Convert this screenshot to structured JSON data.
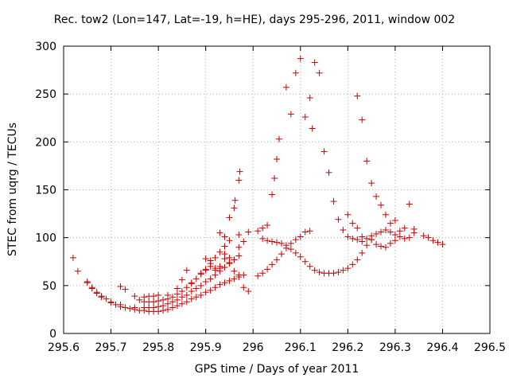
{
  "chart_data": {
    "type": "scatter",
    "title": "Rec. tow2 (Lon=147, Lat=-19, h=HE), days 295-296, 2011, window 002",
    "xlabel": "GPS time / Days of year 2011",
    "ylabel": "STEC from uqrg / TECUs",
    "xlim": [
      295.6,
      296.5
    ],
    "ylim": [
      0,
      300
    ],
    "x_ticks": [
      "295.6",
      "295.7",
      "295.8",
      "295.9",
      "296",
      "296.1",
      "296.2",
      "296.3",
      "296.4",
      "296.5"
    ],
    "y_ticks": [
      "0",
      "50",
      "100",
      "150",
      "200",
      "250",
      "300"
    ],
    "grid": true,
    "legend": "none",
    "marker": "plus",
    "color": "#cc0000",
    "series": [
      {
        "points": [
          [
            295.62,
            79
          ],
          [
            295.63,
            65
          ],
          [
            295.65,
            54
          ],
          [
            295.66,
            48
          ],
          [
            295.67,
            43
          ],
          [
            295.68,
            39
          ],
          [
            295.69,
            36
          ],
          [
            295.7,
            32
          ],
          [
            295.71,
            30
          ],
          [
            295.72,
            28
          ],
          [
            295.73,
            27
          ],
          [
            295.74,
            26
          ],
          [
            295.75,
            25
          ],
          [
            295.76,
            24
          ],
          [
            295.77,
            24
          ],
          [
            295.78,
            23
          ],
          [
            295.79,
            23
          ],
          [
            295.8,
            23
          ],
          [
            295.81,
            24
          ],
          [
            295.82,
            25
          ],
          [
            295.83,
            27
          ],
          [
            295.84,
            29
          ],
          [
            295.85,
            31
          ],
          [
            295.86,
            33
          ],
          [
            295.87,
            36
          ],
          [
            295.88,
            38
          ],
          [
            295.89,
            40
          ],
          [
            295.9,
            43
          ],
          [
            295.91,
            45
          ],
          [
            295.92,
            48
          ],
          [
            295.93,
            51
          ],
          [
            295.94,
            53
          ],
          [
            295.95,
            55
          ],
          [
            295.96,
            57
          ],
          [
            295.97,
            59
          ],
          [
            295.98,
            61
          ]
        ]
      },
      {
        "points": [
          [
            295.65,
            53
          ],
          [
            295.66,
            47
          ],
          [
            295.67,
            42
          ],
          [
            295.68,
            38
          ],
          [
            295.7,
            33
          ],
          [
            295.72,
            30
          ],
          [
            295.75,
            27
          ],
          [
            295.77,
            27
          ],
          [
            295.78,
            27
          ],
          [
            295.79,
            27
          ],
          [
            295.8,
            28
          ],
          [
            295.81,
            29
          ],
          [
            295.82,
            31
          ],
          [
            295.83,
            33
          ],
          [
            295.84,
            35
          ],
          [
            295.85,
            38
          ],
          [
            295.86,
            40
          ],
          [
            295.87,
            44
          ],
          [
            295.88,
            47
          ],
          [
            295.89,
            50
          ],
          [
            295.9,
            54
          ],
          [
            295.91,
            57
          ],
          [
            295.92,
            61
          ],
          [
            295.93,
            65
          ],
          [
            295.94,
            69
          ],
          [
            295.95,
            73
          ],
          [
            295.96,
            77
          ],
          [
            295.97,
            81
          ]
        ]
      },
      {
        "points": [
          [
            295.72,
            49
          ],
          [
            295.73,
            46
          ],
          [
            295.75,
            39
          ],
          [
            295.76,
            35
          ],
          [
            295.77,
            33
          ],
          [
            295.78,
            33
          ],
          [
            295.79,
            33
          ],
          [
            295.8,
            34
          ],
          [
            295.81,
            35
          ],
          [
            295.82,
            36
          ],
          [
            295.83,
            38
          ],
          [
            295.84,
            41
          ],
          [
            295.85,
            44
          ],
          [
            295.86,
            48
          ],
          [
            295.87,
            52
          ],
          [
            295.88,
            57
          ],
          [
            295.89,
            62
          ],
          [
            295.9,
            67
          ],
          [
            295.91,
            73
          ],
          [
            295.92,
            79
          ],
          [
            295.93,
            85
          ],
          [
            295.94,
            91
          ],
          [
            295.95,
            97
          ],
          [
            295.97,
            103
          ],
          [
            295.99,
            106
          ]
        ]
      },
      {
        "points": [
          [
            295.77,
            38
          ],
          [
            295.78,
            39
          ],
          [
            295.79,
            39
          ],
          [
            295.8,
            40
          ],
          [
            295.82,
            40
          ],
          [
            295.84,
            47
          ],
          [
            295.85,
            56
          ],
          [
            295.86,
            66
          ],
          [
            295.87,
            53
          ],
          [
            295.89,
            63
          ],
          [
            295.9,
            66
          ],
          [
            295.91,
            70
          ],
          [
            295.92,
            68
          ],
          [
            295.93,
            70
          ],
          [
            295.94,
            78
          ],
          [
            295.95,
            79
          ],
          [
            295.96,
            77
          ],
          [
            295.97,
            90
          ],
          [
            295.98,
            96
          ]
        ]
      },
      {
        "points": [
          [
            295.9,
            78
          ],
          [
            295.91,
            76
          ],
          [
            295.92,
            66
          ],
          [
            295.93,
            68
          ],
          [
            295.94,
            83
          ],
          [
            295.95,
            74
          ],
          [
            295.96,
            65
          ],
          [
            295.97,
            61
          ],
          [
            295.98,
            48
          ],
          [
            295.99,
            44
          ]
        ]
      },
      {
        "points": [
          [
            295.93,
            105
          ],
          [
            295.94,
            101
          ],
          [
            295.95,
            121
          ],
          [
            295.96,
            131
          ],
          [
            295.962,
            139
          ],
          [
            295.97,
            160
          ],
          [
            295.972,
            169
          ]
        ]
      },
      {
        "points": [
          [
            296.01,
            60
          ],
          [
            296.02,
            63
          ],
          [
            296.03,
            67
          ],
          [
            296.04,
            72
          ],
          [
            296.05,
            77
          ],
          [
            296.06,
            83
          ],
          [
            296.07,
            89
          ],
          [
            296.08,
            94
          ],
          [
            296.09,
            98
          ],
          [
            296.1,
            101
          ],
          [
            296.11,
            106
          ],
          [
            296.12,
            107
          ]
        ]
      },
      {
        "points": [
          [
            296.01,
            107
          ],
          [
            296.02,
            110
          ],
          [
            296.03,
            113
          ],
          [
            296.04,
            145
          ],
          [
            296.045,
            162
          ],
          [
            296.05,
            182
          ],
          [
            296.055,
            203
          ],
          [
            296.07,
            257
          ],
          [
            296.08,
            229
          ],
          [
            296.09,
            272
          ],
          [
            296.1,
            287
          ],
          [
            296.11,
            226
          ],
          [
            296.12,
            246
          ],
          [
            296.125,
            214
          ],
          [
            296.13,
            283
          ],
          [
            296.14,
            272
          ],
          [
            296.15,
            190
          ],
          [
            296.16,
            168
          ],
          [
            296.17,
            138
          ],
          [
            296.18,
            119
          ],
          [
            296.19,
            108
          ],
          [
            296.2,
            101
          ],
          [
            296.21,
            99
          ],
          [
            296.22,
            98
          ],
          [
            296.23,
            96
          ],
          [
            296.24,
            99
          ],
          [
            296.25,
            102
          ],
          [
            296.26,
            104
          ],
          [
            296.27,
            106
          ],
          [
            296.28,
            108
          ],
          [
            296.29,
            106
          ],
          [
            296.3,
            103
          ],
          [
            296.31,
            101
          ],
          [
            296.32,
            99
          ],
          [
            296.33,
            100
          ],
          [
            296.34,
            105
          ],
          [
            296.36,
            102
          ],
          [
            296.37,
            100
          ],
          [
            296.38,
            97
          ],
          [
            296.39,
            95
          ],
          [
            296.4,
            93
          ]
        ]
      },
      {
        "points": [
          [
            296.02,
            99
          ],
          [
            296.03,
            97
          ],
          [
            296.04,
            96
          ],
          [
            296.05,
            95
          ],
          [
            296.06,
            94
          ],
          [
            296.07,
            92
          ],
          [
            296.08,
            88
          ],
          [
            296.09,
            84
          ],
          [
            296.1,
            80
          ],
          [
            296.11,
            75
          ],
          [
            296.12,
            70
          ],
          [
            296.13,
            66
          ],
          [
            296.14,
            64
          ],
          [
            296.15,
            63
          ],
          [
            296.16,
            63
          ],
          [
            296.17,
            63
          ],
          [
            296.18,
            64
          ],
          [
            296.19,
            66
          ],
          [
            296.2,
            68
          ],
          [
            296.21,
            72
          ],
          [
            296.22,
            77
          ],
          [
            296.23,
            84
          ],
          [
            296.24,
            92
          ],
          [
            296.25,
            98
          ]
        ]
      },
      {
        "points": [
          [
            296.22,
            248
          ],
          [
            296.23,
            223
          ],
          [
            296.24,
            180
          ],
          [
            296.25,
            157
          ],
          [
            296.26,
            143
          ],
          [
            296.27,
            134
          ],
          [
            296.28,
            124
          ],
          [
            296.29,
            115
          ],
          [
            296.3,
            118
          ],
          [
            296.31,
            107
          ],
          [
            296.32,
            110
          ],
          [
            296.33,
            135
          ],
          [
            296.34,
            109
          ]
        ]
      },
      {
        "points": [
          [
            296.2,
            124
          ],
          [
            296.21,
            115
          ],
          [
            296.22,
            110
          ],
          [
            296.23,
            101
          ],
          [
            296.25,
            98
          ],
          [
            296.26,
            93
          ],
          [
            296.27,
            91
          ],
          [
            296.28,
            90
          ],
          [
            296.29,
            94
          ],
          [
            296.3,
            97
          ]
        ]
      }
    ]
  }
}
